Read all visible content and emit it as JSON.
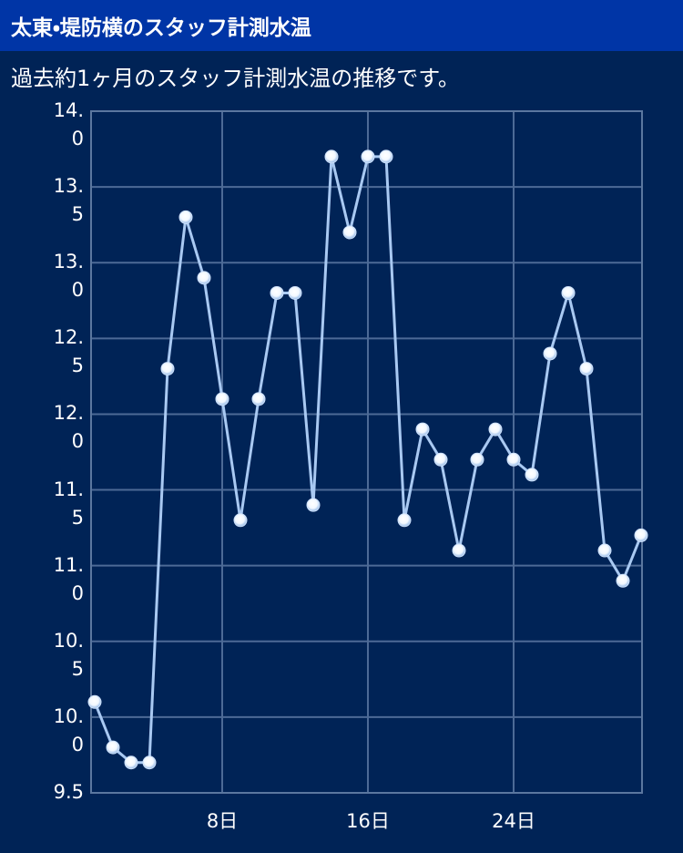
{
  "header": {
    "title": "太東・堤防横のスタッフ計測水温"
  },
  "chart_data": {
    "type": "line",
    "subtitle": "過去約1ヶ月のスタッフ計測水温の推移です。",
    "x": [
      1,
      2,
      3,
      4,
      5,
      6,
      7,
      8,
      9,
      10,
      11,
      12,
      13,
      14,
      15,
      16,
      17,
      18,
      19,
      20,
      21,
      22,
      23,
      24,
      25,
      26,
      27,
      28,
      29,
      30,
      31
    ],
    "series": [
      {
        "color": "#a9c9f2",
        "values": [
          10.1,
          9.8,
          9.7,
          9.7,
          12.3,
          13.3,
          12.9,
          12.1,
          11.3,
          12.1,
          12.8,
          12.8,
          11.4,
          13.7,
          13.2,
          13.7,
          13.7,
          11.3,
          11.9,
          11.7,
          11.1,
          11.7,
          11.9,
          11.7,
          11.6,
          12.4,
          12.8,
          12.3,
          11.1,
          10.9,
          11.2
        ]
      }
    ],
    "xlim": [
      0.8,
      31.05
    ],
    "xticks": [
      {
        "value": 8,
        "label": "8日"
      },
      {
        "value": 16,
        "label": "16日"
      },
      {
        "value": 24,
        "label": "24日"
      }
    ],
    "ylim": [
      9.5,
      14
    ],
    "yticks": [
      {
        "value": 9.5,
        "label": "9.5"
      },
      {
        "value": 10,
        "label": "10.0"
      },
      {
        "value": 10.5,
        "label": "10.5"
      },
      {
        "value": 11,
        "label": "11.0"
      },
      {
        "value": 11.5,
        "label": "11.5"
      },
      {
        "value": 12,
        "label": "12.0"
      },
      {
        "value": 12.5,
        "label": "12.5"
      },
      {
        "value": 13,
        "label": "13.0"
      },
      {
        "value": 13.5,
        "label": "13.5"
      },
      {
        "value": 14,
        "label": "14.0"
      }
    ],
    "grid": true
  }
}
